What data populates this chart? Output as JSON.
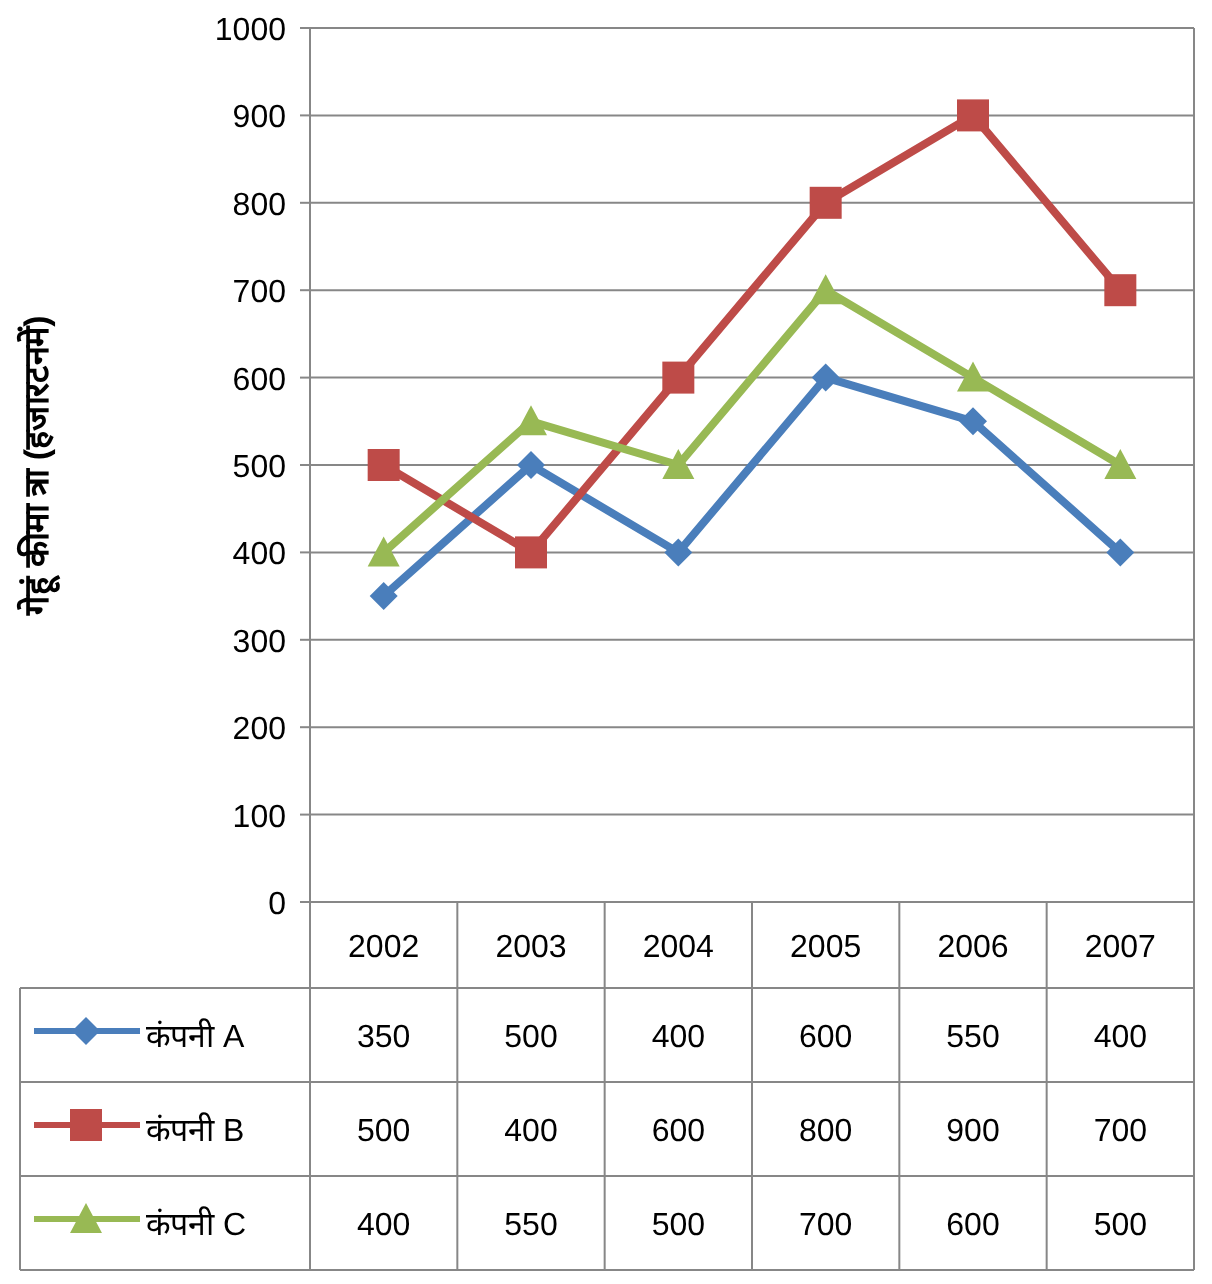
{
  "chart_data": {
    "type": "line",
    "ylabel": "गेहूं कीमा त्रा (हजारटनमें)",
    "categories": [
      "2002",
      "2003",
      "2004",
      "2005",
      "2006",
      "2007"
    ],
    "series": [
      {
        "name": "कंपनी A",
        "color": "#4a7ebb",
        "marker": "diamond",
        "values": [
          350,
          500,
          400,
          600,
          550,
          400
        ]
      },
      {
        "name": "कंपनी B",
        "color": "#be4b48",
        "marker": "square",
        "values": [
          500,
          400,
          600,
          800,
          900,
          700
        ]
      },
      {
        "name": "कंपनी C",
        "color": "#98b954",
        "marker": "triangle",
        "values": [
          400,
          550,
          500,
          700,
          600,
          500
        ]
      }
    ],
    "ylim": [
      0,
      1000
    ],
    "yticks": [
      0,
      100,
      200,
      300,
      400,
      500,
      600,
      700,
      800,
      900,
      1000
    ],
    "grid": "y",
    "legend": "bottom",
    "data_labels": true
  }
}
